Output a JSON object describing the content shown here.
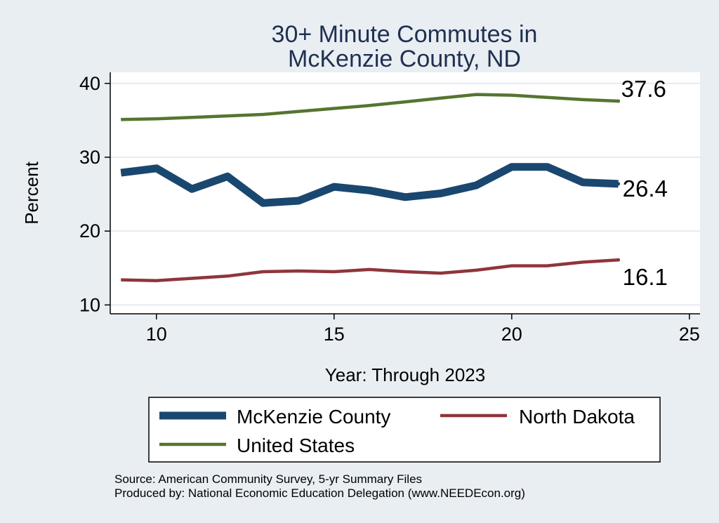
{
  "chart_data": {
    "type": "line",
    "title": [
      "30+ Minute Commutes in",
      "McKenzie County, ND"
    ],
    "xlabel": "Year: Through 2023",
    "ylabel": "Percent",
    "xlim": [
      8.7,
      25.3
    ],
    "ylim": [
      8.8,
      41.5
    ],
    "xticks": [
      10,
      15,
      20,
      25
    ],
    "yticks": [
      10,
      20,
      30,
      40
    ],
    "grid": true,
    "series": [
      {
        "name": "McKenzie County",
        "color": "#1a476f",
        "width": "thick",
        "x": [
          9,
          10,
          11,
          12,
          13,
          14,
          15,
          16,
          17,
          18,
          19,
          20,
          21,
          22,
          23
        ],
        "values": [
          27.9,
          28.5,
          25.7,
          27.4,
          23.8,
          24.1,
          26.0,
          25.5,
          24.6,
          25.1,
          26.2,
          28.7,
          28.7,
          26.6,
          26.4
        ],
        "end_label": "26.4"
      },
      {
        "name": "North Dakota",
        "color": "#90353b",
        "width": "medium",
        "x": [
          9,
          10,
          11,
          12,
          13,
          14,
          15,
          16,
          17,
          18,
          19,
          20,
          21,
          22,
          23
        ],
        "values": [
          13.4,
          13.3,
          13.6,
          13.9,
          14.5,
          14.6,
          14.5,
          14.8,
          14.5,
          14.3,
          14.7,
          15.3,
          15.3,
          15.8,
          16.1
        ],
        "end_label": "16.1"
      },
      {
        "name": "United States",
        "color": "#55752f",
        "width": "medium",
        "x": [
          9,
          10,
          11,
          12,
          13,
          14,
          15,
          16,
          17,
          18,
          19,
          20,
          21,
          22,
          23
        ],
        "values": [
          35.1,
          35.2,
          35.4,
          35.6,
          35.8,
          36.2,
          36.6,
          37.0,
          37.5,
          38.0,
          38.5,
          38.4,
          38.1,
          37.8,
          37.6
        ],
        "end_label": "37.6"
      }
    ],
    "legend": {
      "entries": [
        "McKenzie County",
        "North Dakota",
        "United States"
      ],
      "placement": "bottom"
    }
  },
  "footnotes": {
    "source": "Source: American Community Survey, 5-yr Summary Files",
    "producer": "Produced by: National Economic Education Delegation (www.NEEDEcon.org)"
  },
  "colors": {
    "background": "#e9eef3",
    "plot_background": "#ffffff",
    "title": "#1f3050"
  }
}
